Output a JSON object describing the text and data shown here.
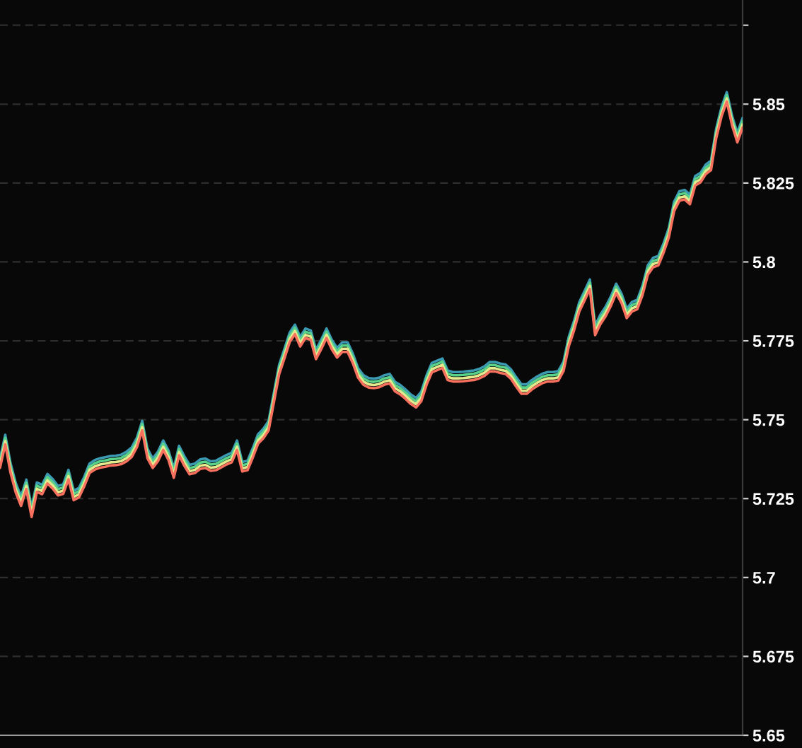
{
  "chart_data": {
    "type": "line",
    "categories": [
      null,
      null,
      null,
      null,
      null,
      null,
      null,
      null,
      null,
      null,
      null,
      null,
      null,
      null,
      null,
      null,
      null,
      null,
      null,
      null,
      null,
      null,
      null,
      null,
      null,
      null,
      null,
      null,
      null,
      null,
      null,
      null,
      null,
      null,
      null,
      null,
      null,
      null,
      null,
      null,
      null,
      null,
      null,
      null,
      null,
      null,
      null,
      null,
      null,
      null,
      null,
      null,
      null,
      null,
      null,
      null,
      null,
      null,
      null,
      null,
      null,
      null,
      null,
      null,
      null,
      null,
      null,
      null,
      null,
      null,
      null,
      null,
      null,
      null,
      null,
      null,
      null,
      null,
      null,
      null,
      null,
      null,
      null,
      null,
      null,
      null,
      null,
      null,
      null,
      null,
      null,
      null,
      null,
      null,
      null,
      null,
      null,
      null,
      null,
      null,
      null,
      null,
      null,
      null,
      null,
      null,
      null,
      null,
      null,
      null,
      null,
      null,
      null,
      null,
      null,
      null,
      null,
      null,
      null,
      null,
      null,
      null,
      null,
      null,
      null,
      null,
      null,
      null,
      null,
      null,
      null,
      null,
      null,
      null,
      null,
      null,
      null,
      null,
      null,
      null,
      null,
      null
    ],
    "series": [
      {
        "color": "#3b9ab2",
        "values": [
          5.7377,
          5.7452,
          5.7362,
          5.7299,
          5.7257,
          5.731,
          5.7222,
          5.7301,
          5.7294,
          5.7328,
          5.7312,
          5.729,
          5.7295,
          5.7341,
          5.7275,
          5.7284,
          5.7319,
          5.7361,
          5.7372,
          5.7378,
          5.7381,
          5.7385,
          5.7386,
          5.7389,
          5.7398,
          5.7412,
          5.7443,
          5.7496,
          5.7408,
          5.7377,
          5.7399,
          5.7434,
          5.7402,
          5.7346,
          5.7417,
          5.7384,
          5.7357,
          5.7361,
          5.7374,
          5.7377,
          5.7368,
          5.737,
          5.7379,
          5.7388,
          5.7395,
          5.7434,
          5.7366,
          5.737,
          5.741,
          5.7454,
          5.7471,
          5.7496,
          5.7585,
          5.7674,
          5.7724,
          5.7776,
          5.7801,
          5.7762,
          5.7789,
          5.7783,
          5.7722,
          5.7754,
          5.7789,
          5.7753,
          5.7727,
          5.7745,
          5.7745,
          5.7709,
          5.7663,
          5.7641,
          5.7632,
          5.763,
          5.7633,
          5.7641,
          5.7645,
          5.762,
          5.761,
          5.7596,
          5.758,
          5.7569,
          5.7589,
          5.7641,
          5.768,
          5.7687,
          5.7694,
          5.7656,
          5.7651,
          5.7651,
          5.7652,
          5.7654,
          5.7656,
          5.7661,
          5.7669,
          5.7683,
          5.7683,
          5.7678,
          5.7675,
          5.766,
          5.7635,
          5.7612,
          5.7612,
          5.7626,
          5.7637,
          5.7646,
          5.7651,
          5.7651,
          5.7654,
          5.7684,
          5.7763,
          5.7813,
          5.7873,
          5.7908,
          5.7944,
          5.7798,
          5.7833,
          5.7858,
          5.7891,
          5.7931,
          5.79,
          5.7852,
          5.7873,
          5.788,
          5.7925,
          5.7989,
          5.8013,
          5.8019,
          5.8059,
          5.8108,
          5.8191,
          5.8224,
          5.8228,
          5.8213,
          5.8272,
          5.8282,
          5.8308,
          5.8321,
          5.8423,
          5.8491,
          5.8538,
          5.8463,
          5.8409,
          5.8456
        ]
      },
      {
        "color": "#5ad38a",
        "values": [
          5.7367,
          5.7442,
          5.7352,
          5.7289,
          5.7247,
          5.73,
          5.7212,
          5.7291,
          5.7284,
          5.7318,
          5.7302,
          5.728,
          5.7285,
          5.7331,
          5.7265,
          5.7274,
          5.7309,
          5.7351,
          5.7362,
          5.7368,
          5.7371,
          5.7375,
          5.7376,
          5.7379,
          5.7388,
          5.7402,
          5.7433,
          5.7486,
          5.7398,
          5.7367,
          5.7389,
          5.7424,
          5.7392,
          5.7336,
          5.7407,
          5.7374,
          5.7347,
          5.7351,
          5.7364,
          5.7367,
          5.7358,
          5.736,
          5.7369,
          5.7378,
          5.7385,
          5.7424,
          5.7356,
          5.736,
          5.74,
          5.7444,
          5.7461,
          5.7486,
          5.7575,
          5.7664,
          5.7714,
          5.7766,
          5.7791,
          5.7752,
          5.7779,
          5.7773,
          5.7712,
          5.7744,
          5.7779,
          5.7743,
          5.7717,
          5.7735,
          5.7735,
          5.7699,
          5.7653,
          5.7631,
          5.7622,
          5.762,
          5.7623,
          5.7631,
          5.7635,
          5.761,
          5.76,
          5.7586,
          5.757,
          5.7559,
          5.7579,
          5.7631,
          5.767,
          5.7677,
          5.7684,
          5.7646,
          5.7641,
          5.7641,
          5.7642,
          5.7644,
          5.7646,
          5.7651,
          5.7659,
          5.7673,
          5.7673,
          5.7668,
          5.7665,
          5.765,
          5.7625,
          5.7602,
          5.7602,
          5.7616,
          5.7627,
          5.7636,
          5.7641,
          5.7641,
          5.7644,
          5.7674,
          5.7753,
          5.7803,
          5.7863,
          5.7898,
          5.7934,
          5.7788,
          5.7823,
          5.7848,
          5.7881,
          5.7921,
          5.789,
          5.7842,
          5.7863,
          5.787,
          5.7915,
          5.7979,
          5.8003,
          5.8009,
          5.8049,
          5.8098,
          5.8181,
          5.8214,
          5.8218,
          5.8203,
          5.8262,
          5.8272,
          5.8298,
          5.8311,
          5.8413,
          5.8481,
          5.8528,
          5.8453,
          5.8399,
          5.8446
        ]
      },
      {
        "color": "#e4ea8e",
        "values": [
          5.7357,
          5.7432,
          5.7342,
          5.7279,
          5.7237,
          5.729,
          5.7202,
          5.7281,
          5.7274,
          5.7308,
          5.7292,
          5.727,
          5.7275,
          5.7321,
          5.7255,
          5.7264,
          5.7299,
          5.7341,
          5.7352,
          5.7358,
          5.7361,
          5.7365,
          5.7366,
          5.7369,
          5.7378,
          5.7392,
          5.7423,
          5.7476,
          5.7388,
          5.7357,
          5.7379,
          5.7414,
          5.7382,
          5.7326,
          5.7397,
          5.7364,
          5.7337,
          5.7341,
          5.7354,
          5.7357,
          5.7348,
          5.735,
          5.7359,
          5.7368,
          5.7375,
          5.7414,
          5.7346,
          5.735,
          5.739,
          5.7434,
          5.7451,
          5.7476,
          5.7565,
          5.7654,
          5.7704,
          5.7756,
          5.7781,
          5.7742,
          5.7769,
          5.7763,
          5.7702,
          5.7734,
          5.7769,
          5.7733,
          5.7707,
          5.7725,
          5.7725,
          5.7689,
          5.7643,
          5.7621,
          5.7612,
          5.761,
          5.7613,
          5.7621,
          5.7625,
          5.76,
          5.759,
          5.7576,
          5.756,
          5.7549,
          5.7569,
          5.7621,
          5.766,
          5.7667,
          5.7674,
          5.7636,
          5.7631,
          5.7631,
          5.7632,
          5.7634,
          5.7636,
          5.7641,
          5.7649,
          5.7663,
          5.7663,
          5.7658,
          5.7655,
          5.764,
          5.7615,
          5.7592,
          5.7592,
          5.7606,
          5.7617,
          5.7626,
          5.7631,
          5.7631,
          5.7634,
          5.7664,
          5.7743,
          5.7793,
          5.7853,
          5.7888,
          5.7924,
          5.7778,
          5.7813,
          5.7838,
          5.7871,
          5.7911,
          5.788,
          5.7832,
          5.7853,
          5.786,
          5.7905,
          5.7969,
          5.7993,
          5.7999,
          5.8039,
          5.8088,
          5.8171,
          5.8204,
          5.8208,
          5.8193,
          5.8252,
          5.8262,
          5.8288,
          5.8301,
          5.8403,
          5.8471,
          5.8518,
          5.8443,
          5.8389,
          5.8436
        ]
      },
      {
        "color": "#f8705e",
        "values": [
          5.7347,
          5.7422,
          5.7332,
          5.7269,
          5.7227,
          5.728,
          5.7192,
          5.7271,
          5.7264,
          5.7298,
          5.7282,
          5.726,
          5.7265,
          5.7311,
          5.7245,
          5.7254,
          5.7289,
          5.7331,
          5.7342,
          5.7348,
          5.7351,
          5.7355,
          5.7356,
          5.7359,
          5.7368,
          5.7382,
          5.7413,
          5.7466,
          5.7378,
          5.7347,
          5.7369,
          5.7404,
          5.7372,
          5.7316,
          5.7387,
          5.7354,
          5.7327,
          5.7331,
          5.7344,
          5.7347,
          5.7338,
          5.734,
          5.7349,
          5.7358,
          5.7365,
          5.7404,
          5.7336,
          5.734,
          5.738,
          5.7424,
          5.7441,
          5.7466,
          5.7555,
          5.7644,
          5.7694,
          5.7746,
          5.7771,
          5.7732,
          5.7759,
          5.7753,
          5.7692,
          5.7724,
          5.7759,
          5.7723,
          5.7697,
          5.7715,
          5.7715,
          5.7679,
          5.7633,
          5.7611,
          5.7602,
          5.76,
          5.7603,
          5.7611,
          5.7615,
          5.759,
          5.758,
          5.7566,
          5.755,
          5.7539,
          5.7559,
          5.7611,
          5.765,
          5.7657,
          5.7664,
          5.7626,
          5.7621,
          5.7621,
          5.7622,
          5.7624,
          5.7626,
          5.7631,
          5.7639,
          5.7653,
          5.7653,
          5.7648,
          5.7645,
          5.763,
          5.7605,
          5.7582,
          5.7582,
          5.7596,
          5.7607,
          5.7616,
          5.7621,
          5.7621,
          5.7624,
          5.7654,
          5.7733,
          5.7783,
          5.7843,
          5.7878,
          5.7914,
          5.7768,
          5.7803,
          5.7828,
          5.7861,
          5.7901,
          5.787,
          5.7822,
          5.7843,
          5.785,
          5.7895,
          5.7959,
          5.7983,
          5.7989,
          5.8029,
          5.8078,
          5.8161,
          5.8194,
          5.8198,
          5.8183,
          5.8242,
          5.8252,
          5.8278,
          5.8291,
          5.8393,
          5.8461,
          5.8508,
          5.8433,
          5.8379,
          5.8426
        ]
      }
    ],
    "ylim": [
      5.65,
      5.883
    ],
    "yticks": [
      5.65,
      5.675,
      5.7,
      5.725,
      5.75,
      5.775,
      5.8,
      5.825,
      5.85,
      {
        "value": 5.875,
        "label": null
      }
    ],
    "grid": "y"
  }
}
